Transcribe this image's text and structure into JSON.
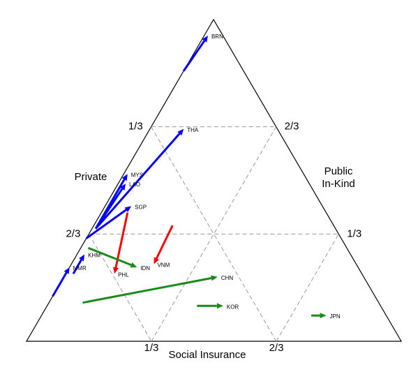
{
  "chart_data": {
    "type": "ternary-arrows",
    "axes": {
      "private": {
        "label": [
          "Private"
        ],
        "ticks": [
          {
            "value": 0.3333,
            "label": "1/3"
          },
          {
            "value": 0.6667,
            "label": "2/3"
          }
        ]
      },
      "social": {
        "label": [
          "Social Insurance"
        ],
        "ticks": [
          {
            "value": 0.3333,
            "label": "1/3"
          },
          {
            "value": 0.6667,
            "label": "2/3"
          }
        ]
      },
      "public": {
        "label": [
          "Public",
          "In-Kind"
        ],
        "ticks": [
          {
            "value": 0.3333,
            "label": "1/3"
          },
          {
            "value": 0.6667,
            "label": "2/3"
          }
        ]
      }
    },
    "grid": true,
    "arrows": [
      {
        "name": "BRN",
        "color": "#0000ff",
        "start": {
          "private": 0.16,
          "public": 0.84,
          "social": 0.0
        },
        "end": {
          "private": 0.04,
          "public": 0.95,
          "social": 0.01
        }
      },
      {
        "name": "THA",
        "color": "#0000ff",
        "start": {
          "private": 0.64,
          "public": 0.35,
          "social": 0.01
        },
        "end": {
          "private": 0.25,
          "public": 0.66,
          "social": 0.09
        }
      },
      {
        "name": "MYS",
        "color": "#0000ff",
        "start": {
          "private": 0.64,
          "public": 0.35,
          "social": 0.01
        },
        "end": {
          "private": 0.47,
          "public": 0.52,
          "social": 0.01
        }
      },
      {
        "name": "LAO",
        "color": "#0000ff",
        "start": {
          "private": 0.64,
          "public": 0.35,
          "social": 0.01
        },
        "end": {
          "private": 0.49,
          "public": 0.49,
          "social": 0.02
        }
      },
      {
        "name": "SGP",
        "color": "#0000ff",
        "start": {
          "private": 0.68,
          "public": 0.32,
          "social": 0.0
        },
        "end": {
          "private": 0.51,
          "public": 0.42,
          "social": 0.07
        }
      },
      {
        "name": "KHM",
        "color": "#0000ff",
        "start": {
          "private": 0.77,
          "public": 0.21,
          "social": 0.02
        },
        "end": {
          "private": 0.71,
          "public": 0.27,
          "social": 0.02
        }
      },
      {
        "name": "MMR",
        "color": "#0000ff",
        "start": {
          "private": 0.86,
          "public": 0.14,
          "social": 0.0
        },
        "end": {
          "private": 0.77,
          "public": 0.23,
          "social": 0.0
        }
      },
      {
        "name": "PHL",
        "color": "#ff0000",
        "start": {
          "private": 0.53,
          "public": 0.4,
          "social": 0.07
        },
        "end": {
          "private": 0.66,
          "public": 0.21,
          "social": 0.13
        }
      },
      {
        "name": "VNM",
        "color": "#ff0000",
        "start": {
          "private": 0.43,
          "public": 0.36,
          "social": 0.21
        },
        "end": {
          "private": 0.54,
          "public": 0.24,
          "social": 0.22
        }
      },
      {
        "name": "IDN",
        "color": "#1a8a1a",
        "start": {
          "private": 0.69,
          "public": 0.29,
          "social": 0.02
        },
        "end": {
          "private": 0.59,
          "public": 0.23,
          "social": 0.18
        }
      },
      {
        "name": "CHN",
        "color": "#1a8a1a",
        "start": {
          "private": 0.79,
          "public": 0.12,
          "social": 0.09
        },
        "end": {
          "private": 0.39,
          "public": 0.2,
          "social": 0.41
        }
      },
      {
        "name": "KOR",
        "color": "#1a8a1a",
        "start": {
          "private": 0.49,
          "public": 0.11,
          "social": 0.4
        },
        "end": {
          "private": 0.42,
          "public": 0.11,
          "social": 0.47
        }
      },
      {
        "name": "JPN",
        "color": "#1a8a1a",
        "start": {
          "private": 0.2,
          "public": 0.08,
          "social": 0.72
        },
        "end": {
          "private": 0.16,
          "public": 0.08,
          "social": 0.76
        }
      }
    ]
  }
}
